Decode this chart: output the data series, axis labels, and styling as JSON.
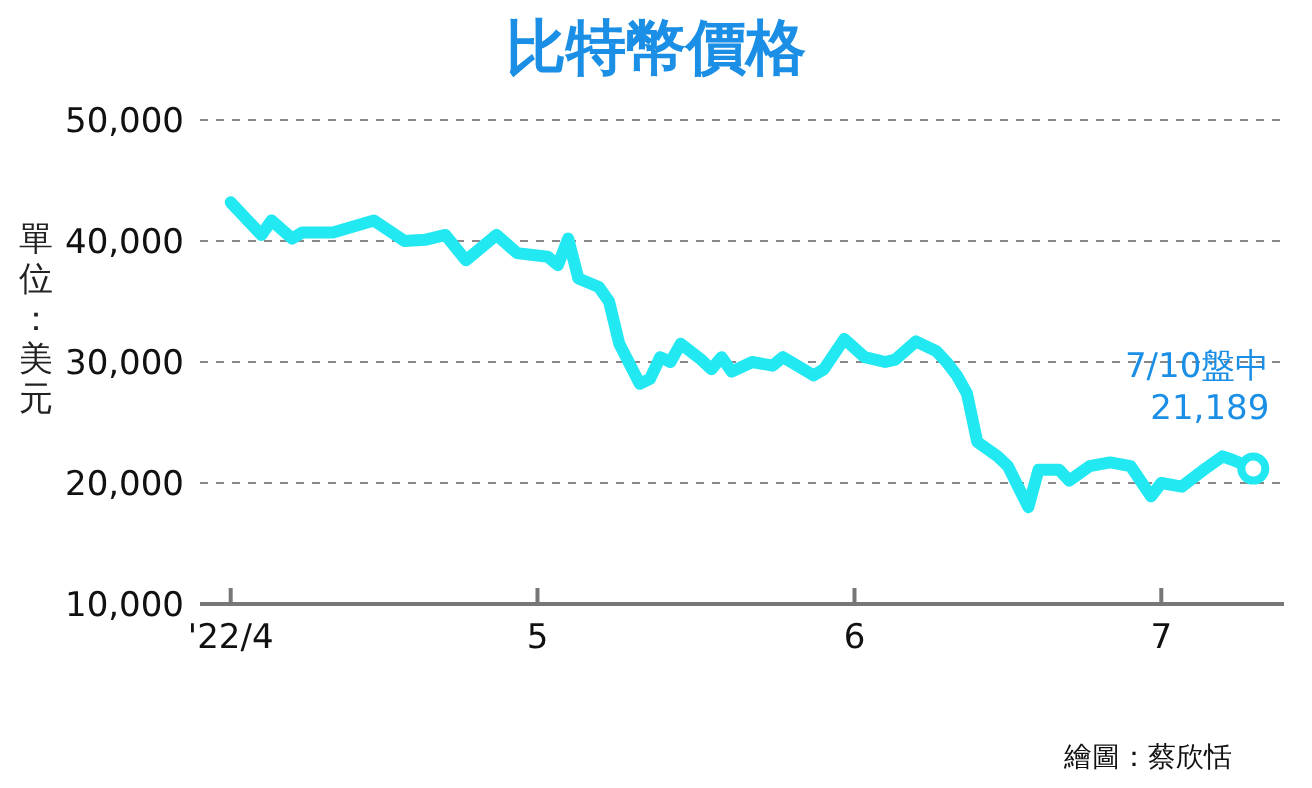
{
  "chart_data": {
    "type": "line",
    "title": "比特幣價格",
    "ylabel": "單位：美元",
    "x": [
      "2022-04-01",
      "2022-04-04",
      "2022-04-05",
      "2022-04-07",
      "2022-04-08",
      "2022-04-11",
      "2022-04-15",
      "2022-04-18",
      "2022-04-20",
      "2022-04-22",
      "2022-04-24",
      "2022-04-27",
      "2022-04-29",
      "2022-05-02",
      "2022-05-03",
      "2022-05-04",
      "2022-05-05",
      "2022-05-07",
      "2022-05-08",
      "2022-05-09",
      "2022-05-11",
      "2022-05-12",
      "2022-05-13",
      "2022-05-14",
      "2022-05-15",
      "2022-05-17",
      "2022-05-18",
      "2022-05-19",
      "2022-05-20",
      "2022-05-22",
      "2022-05-24",
      "2022-05-25",
      "2022-05-28",
      "2022-05-29",
      "2022-05-31",
      "2022-06-02",
      "2022-06-04",
      "2022-06-05",
      "2022-06-07",
      "2022-06-09",
      "2022-06-10",
      "2022-06-11",
      "2022-06-12",
      "2022-06-13",
      "2022-06-15",
      "2022-06-16",
      "2022-06-18",
      "2022-06-19",
      "2022-06-21",
      "2022-06-22",
      "2022-06-24",
      "2022-06-26",
      "2022-06-28",
      "2022-06-30",
      "2022-07-01",
      "2022-07-03",
      "2022-07-05",
      "2022-07-07",
      "2022-07-08",
      "2022-07-10"
    ],
    "series": [
      {
        "color": "#22e8f2",
        "values": [
          43200,
          40500,
          41700,
          40200,
          40700,
          40700,
          41700,
          40000,
          40100,
          40500,
          38400,
          40500,
          39000,
          38700,
          38000,
          40200,
          36900,
          36200,
          35000,
          31500,
          28200,
          28600,
          30400,
          30000,
          31500,
          30200,
          29400,
          30400,
          29200,
          30000,
          29700,
          30400,
          28900,
          29400,
          31900,
          30400,
          30000,
          30200,
          31700,
          30900,
          30000,
          28900,
          27400,
          23400,
          22200,
          21400,
          18000,
          21100,
          21100,
          20200,
          21400,
          21700,
          21400,
          18900,
          20000,
          19700,
          21000,
          22200,
          21900,
          21189
        ]
      }
    ],
    "xlim": [
      "2022-03-29",
      "2022-07-13"
    ],
    "xticks": [
      {
        "value": "2022-04-01",
        "label": "'22/4"
      },
      {
        "value": "2022-05-01",
        "label": "5"
      },
      {
        "value": "2022-06-01",
        "label": "6"
      },
      {
        "value": "2022-07-01",
        "label": "7"
      }
    ],
    "ylim": [
      10000,
      50000
    ],
    "yticks": [
      {
        "value": 10000,
        "label": "10,000"
      },
      {
        "value": 20000,
        "label": "20,000"
      },
      {
        "value": 30000,
        "label": "30,000"
      },
      {
        "value": 40000,
        "label": "40,000"
      },
      {
        "value": 50000,
        "label": "50,000"
      }
    ],
    "grid": "y",
    "marker": "none",
    "line_style": "solid",
    "annotations": [
      {
        "text": "7/10盤中\n21,189",
        "x": "2022-07-10",
        "y": 21189
      },
      "繪圖：蔡欣恬"
    ]
  }
}
